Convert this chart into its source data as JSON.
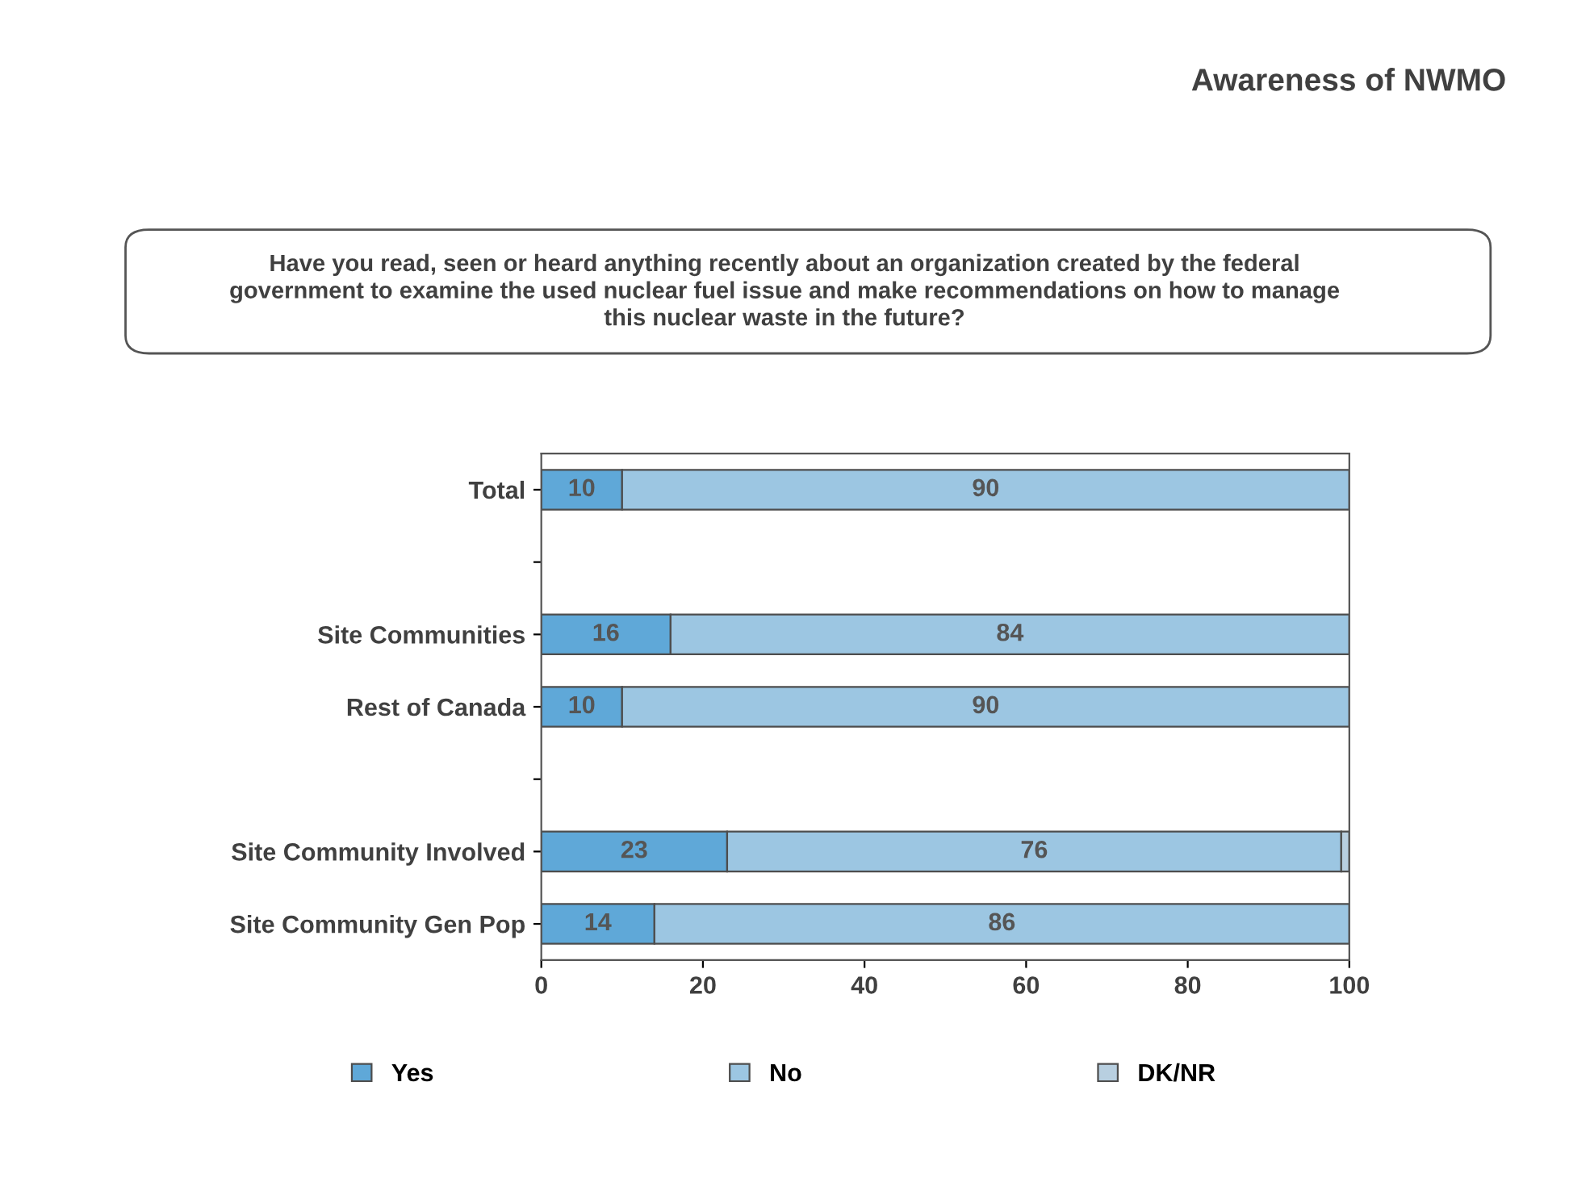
{
  "chart_data": {
    "type": "bar",
    "orientation": "horizontal",
    "stacked": true,
    "title": "Awareness of NWMO",
    "annotations": [
      "Have you read, seen or heard anything recently about an organization created by the federal government to examine the used nuclear fuel issue and make recommendations on how to manage this nuclear waste in the future?"
    ],
    "categories": [
      "Total",
      null,
      "Site Communities",
      "Rest of Canada",
      null,
      "Site Community Involved",
      "Site Community Gen Pop"
    ],
    "series": [
      {
        "name": "Yes",
        "color": "#5fa8d8",
        "values": [
          10,
          null,
          16,
          10,
          null,
          23,
          14
        ],
        "value_labels": [
          "10",
          null,
          "16",
          "10",
          null,
          "23",
          "14"
        ]
      },
      {
        "name": "No",
        "color": "#9cc6e2",
        "values": [
          90,
          null,
          84,
          90,
          null,
          76,
          86
        ],
        "value_labels": [
          "90",
          null,
          "84",
          "90",
          null,
          "76",
          "86"
        ]
      },
      {
        "name": "DK/NR",
        "color": "#b8cfe0",
        "values": [
          0,
          null,
          0,
          0,
          null,
          1,
          0
        ]
      }
    ],
    "xlim": [
      0,
      100
    ],
    "xticks": [
      0,
      20,
      40,
      60,
      80,
      100
    ],
    "grid": false,
    "legend": "bottom"
  }
}
